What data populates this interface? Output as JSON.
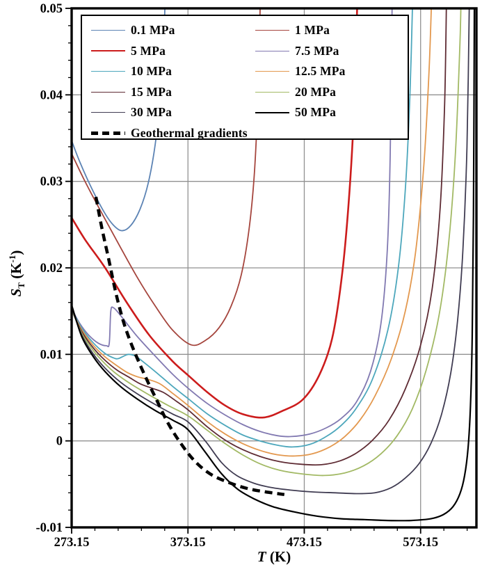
{
  "figure": {
    "xlabel": {
      "symbol": "T",
      "unit": "(K)"
    },
    "ylabel": {
      "symbol": "S",
      "subscript": "T",
      "unit_open": "(K",
      "exponent": "-1",
      "unit_close": ")"
    }
  },
  "legend": {
    "order": [
      "0.1 MPa",
      "1 MPa",
      "5 MPa",
      "7.5 MPa",
      "10 MPa",
      "12.5 MPa",
      "15 MPa",
      "20 MPa",
      "30 MPa",
      "50 MPa",
      "Geothermal gradients"
    ]
  },
  "chart_data": {
    "type": "line",
    "title": "",
    "xlabel": "T (K)",
    "ylabel": "S_T (K^-1)",
    "xlim": [
      273.15,
      621.15
    ],
    "ylim": [
      -0.01,
      0.05
    ],
    "grid": true,
    "legend_position": "upper-left-inside",
    "x_tick_values": [
      273.15,
      373.15,
      473.15,
      573.15
    ],
    "x_tick_labels": [
      "273.15",
      "373.15",
      "473.15",
      "573.15"
    ],
    "x_minor_step": 20,
    "y_tick_values": [
      -0.01,
      0,
      0.01,
      0.02,
      0.03,
      0.04,
      0.05
    ],
    "y_tick_labels": [
      "-0.01",
      "0",
      "0.01",
      "0.02",
      "0.03",
      "0.04",
      "0.05"
    ],
    "y_minor_step": 0.002,
    "grid_color": "#919191",
    "frame_color": "#000000",
    "series": [
      {
        "name": "0.1 MPa",
        "color": "#5c83b4",
        "width": 1.8,
        "dash": false,
        "points": [
          [
            273.15,
            0.0347
          ],
          [
            280,
            0.0323
          ],
          [
            290,
            0.0293
          ],
          [
            300,
            0.0267
          ],
          [
            308,
            0.0251
          ],
          [
            316,
            0.0243
          ],
          [
            324,
            0.0249
          ],
          [
            332,
            0.0268
          ],
          [
            339,
            0.0298
          ],
          [
            345,
            0.0343
          ],
          [
            349,
            0.0395
          ],
          [
            352,
            0.0455
          ],
          [
            353.8,
            0.052
          ]
        ]
      },
      {
        "name": "1 MPa",
        "color": "#a5453d",
        "width": 1.8,
        "dash": false,
        "points": [
          [
            273.15,
            0.0332
          ],
          [
            285,
            0.0299
          ],
          [
            300,
            0.0261
          ],
          [
            315,
            0.0224
          ],
          [
            330,
            0.0188
          ],
          [
            345,
            0.0156
          ],
          [
            360,
            0.0128
          ],
          [
            376,
            0.0111
          ],
          [
            388,
            0.0116
          ],
          [
            400,
            0.0131
          ],
          [
            410,
            0.0155
          ],
          [
            419,
            0.0192
          ],
          [
            426,
            0.0248
          ],
          [
            430.5,
            0.0315
          ],
          [
            433.5,
            0.0405
          ],
          [
            435.5,
            0.052
          ]
        ]
      },
      {
        "name": "5 MPa",
        "color": "#cc1c1c",
        "width": 2.6,
        "dash": false,
        "points": [
          [
            273.15,
            0.0258
          ],
          [
            285,
            0.0232
          ],
          [
            302,
            0.02
          ],
          [
            320,
            0.0161
          ],
          [
            340,
            0.0122
          ],
          [
            360,
            0.0092
          ],
          [
            373.15,
            0.0076
          ],
          [
            390,
            0.0056
          ],
          [
            405,
            0.0041
          ],
          [
            420,
            0.0031
          ],
          [
            438,
            0.0027
          ],
          [
            455,
            0.0035
          ],
          [
            472,
            0.0048
          ],
          [
            486,
            0.0076
          ],
          [
            497,
            0.0118
          ],
          [
            505,
            0.0185
          ],
          [
            511,
            0.027
          ],
          [
            515.5,
            0.037
          ],
          [
            519,
            0.052
          ]
        ]
      },
      {
        "name": "7.5 MPa",
        "color": "#8179b1",
        "width": 1.8,
        "dash": false,
        "points": [
          [
            273.15,
            0.0153
          ],
          [
            280,
            0.0136
          ],
          [
            288,
            0.0122
          ],
          [
            296,
            0.0113
          ],
          [
            303,
            0.011
          ],
          [
            305.5,
            0.0113
          ],
          [
            306.8,
            0.015
          ],
          [
            309,
            0.0154
          ],
          [
            314,
            0.0147
          ],
          [
            321,
            0.0135
          ],
          [
            330,
            0.012
          ],
          [
            345,
            0.0098
          ],
          [
            360,
            0.0077
          ],
          [
            373.15,
            0.0061
          ],
          [
            390,
            0.0043
          ],
          [
            405,
            0.003
          ],
          [
            420,
            0.0019
          ],
          [
            435,
            0.0011
          ],
          [
            450,
            0.0006
          ],
          [
            462,
            0.0005
          ],
          [
            478,
            0.0008
          ],
          [
            492,
            0.0015
          ],
          [
            505,
            0.0026
          ],
          [
            518,
            0.0045
          ],
          [
            530,
            0.008
          ],
          [
            539,
            0.0135
          ],
          [
            544.5,
            0.022
          ],
          [
            547,
            0.033
          ],
          [
            548.8,
            0.052
          ]
        ]
      },
      {
        "name": "10 MPa",
        "color": "#4da7bc",
        "width": 1.8,
        "dash": false,
        "points": [
          [
            273.15,
            0.0152
          ],
          [
            282,
            0.013
          ],
          [
            292,
            0.0113
          ],
          [
            302,
            0.0101
          ],
          [
            309,
            0.0096
          ],
          [
            313,
            0.0095
          ],
          [
            318,
            0.0098
          ],
          [
            322,
            0.01
          ],
          [
            328,
            0.0098
          ],
          [
            336,
            0.009
          ],
          [
            346,
            0.0079
          ],
          [
            360,
            0.0063
          ],
          [
            373.15,
            0.0049
          ],
          [
            390,
            0.0031
          ],
          [
            405,
            0.0018
          ],
          [
            420,
            0.0007
          ],
          [
            435,
            0.0
          ],
          [
            450,
            -0.0005
          ],
          [
            463,
            -0.0007
          ],
          [
            478,
            -0.0004
          ],
          [
            492,
            0.0005
          ],
          [
            505,
            0.0018
          ],
          [
            518,
            0.0038
          ],
          [
            532,
            0.0072
          ],
          [
            545,
            0.0128
          ],
          [
            554,
            0.02
          ],
          [
            560,
            0.029
          ],
          [
            564,
            0.04
          ],
          [
            566.5,
            0.052
          ]
        ]
      },
      {
        "name": "12.5 MPa",
        "color": "#e3984e",
        "width": 1.8,
        "dash": false,
        "points": [
          [
            273.15,
            0.0151
          ],
          [
            282,
            0.0128
          ],
          [
            292,
            0.011
          ],
          [
            302,
            0.0097
          ],
          [
            312,
            0.0087
          ],
          [
            321,
            0.0079
          ],
          [
            330,
            0.0074
          ],
          [
            339,
            0.0071
          ],
          [
            349,
            0.0066
          ],
          [
            360,
            0.0055
          ],
          [
            373.15,
            0.0041
          ],
          [
            390,
            0.0022
          ],
          [
            405,
            0.0008
          ],
          [
            420,
            -0.0003
          ],
          [
            435,
            -0.0011
          ],
          [
            450,
            -0.0016
          ],
          [
            465,
            -0.00175
          ],
          [
            480,
            -0.0015
          ],
          [
            495,
            -0.0007
          ],
          [
            508,
            0.0005
          ],
          [
            521,
            0.0024
          ],
          [
            534,
            0.0052
          ],
          [
            548,
            0.0095
          ],
          [
            560,
            0.015
          ],
          [
            569,
            0.022
          ],
          [
            576,
            0.032
          ],
          [
            580.5,
            0.043
          ],
          [
            582.8,
            0.052
          ]
        ]
      },
      {
        "name": "15 MPa",
        "color": "#5e2b33",
        "width": 1.8,
        "dash": false,
        "points": [
          [
            273.15,
            0.0151
          ],
          [
            282,
            0.0126
          ],
          [
            292,
            0.0107
          ],
          [
            302,
            0.0093
          ],
          [
            312,
            0.0082
          ],
          [
            322,
            0.0074
          ],
          [
            332,
            0.0066
          ],
          [
            342,
            0.0061
          ],
          [
            352,
            0.0056
          ],
          [
            363,
            0.0046
          ],
          [
            373.15,
            0.0036
          ],
          [
            390,
            0.0016
          ],
          [
            405,
            0.0001
          ],
          [
            420,
            -0.001
          ],
          [
            435,
            -0.0018
          ],
          [
            452,
            -0.0024
          ],
          [
            470,
            -0.0027
          ],
          [
            488,
            -0.00275
          ],
          [
            504,
            -0.0023
          ],
          [
            518,
            -0.0014
          ],
          [
            532,
            0.0001
          ],
          [
            546,
            0.0024
          ],
          [
            560,
            0.006
          ],
          [
            573,
            0.011
          ],
          [
            583,
            0.0175
          ],
          [
            590,
            0.027
          ],
          [
            593.8,
            0.039
          ],
          [
            595.5,
            0.052
          ]
        ]
      },
      {
        "name": "20 MPa",
        "color": "#a2b964",
        "width": 1.8,
        "dash": false,
        "points": [
          [
            273.15,
            0.0152
          ],
          [
            282,
            0.0124
          ],
          [
            292,
            0.0104
          ],
          [
            302,
            0.0089
          ],
          [
            312,
            0.0077
          ],
          [
            325,
            0.0065
          ],
          [
            340,
            0.0053
          ],
          [
            356,
            0.0041
          ],
          [
            373.15,
            0.0029
          ],
          [
            390,
            0.0012
          ],
          [
            405,
            -0.0003
          ],
          [
            420,
            -0.0016
          ],
          [
            436,
            -0.0027
          ],
          [
            452,
            -0.0034
          ],
          [
            470,
            -0.0038
          ],
          [
            490,
            -0.004
          ],
          [
            508,
            -0.0037
          ],
          [
            524,
            -0.0029
          ],
          [
            539,
            -0.0015
          ],
          [
            553,
            0.0006
          ],
          [
            566,
            0.0037
          ],
          [
            578,
            0.0082
          ],
          [
            589,
            0.0145
          ],
          [
            597,
            0.0225
          ],
          [
            603,
            0.033
          ],
          [
            607,
            0.046
          ],
          [
            608,
            0.052
          ]
        ]
      },
      {
        "name": "30 MPa",
        "color": "#403c52",
        "width": 1.8,
        "dash": false,
        "points": [
          [
            273.15,
            0.0154
          ],
          [
            282,
            0.0122
          ],
          [
            292,
            0.01
          ],
          [
            302,
            0.0084
          ],
          [
            315,
            0.0068
          ],
          [
            330,
            0.0054
          ],
          [
            345,
            0.0042
          ],
          [
            360,
            0.0031
          ],
          [
            373.15,
            0.0022
          ],
          [
            388,
            0.0
          ],
          [
            402,
            -0.0025
          ],
          [
            415,
            -0.004
          ],
          [
            430,
            -0.0049
          ],
          [
            445,
            -0.0054
          ],
          [
            462,
            -0.0057
          ],
          [
            480,
            -0.0059
          ],
          [
            500,
            -0.006
          ],
          [
            518,
            -0.0061
          ],
          [
            534,
            -0.006
          ],
          [
            548,
            -0.0054
          ],
          [
            560,
            -0.0043
          ],
          [
            572,
            -0.0026
          ],
          [
            582,
            -0.0003
          ],
          [
            591,
            0.003
          ],
          [
            599,
            0.0078
          ],
          [
            605,
            0.014
          ],
          [
            609.5,
            0.022
          ],
          [
            613,
            0.034
          ],
          [
            615.2,
            0.052
          ]
        ]
      },
      {
        "name": "50 MPa",
        "color": "#000000",
        "width": 2.2,
        "dash": false,
        "points": [
          [
            273.15,
            0.0157
          ],
          [
            282,
            0.012
          ],
          [
            292,
            0.0097
          ],
          [
            302,
            0.008
          ],
          [
            315,
            0.0063
          ],
          [
            330,
            0.0048
          ],
          [
            345,
            0.0035
          ],
          [
            360,
            0.0024
          ],
          [
            373.15,
            0.0013
          ],
          [
            388,
            -0.0013
          ],
          [
            402,
            -0.0038
          ],
          [
            416,
            -0.0056
          ],
          [
            430,
            -0.0067
          ],
          [
            446,
            -0.0076
          ],
          [
            464,
            -0.0082
          ],
          [
            484,
            -0.0087
          ],
          [
            505,
            -0.009
          ],
          [
            525,
            -0.0091
          ],
          [
            545,
            -0.0092
          ],
          [
            565,
            -0.0092
          ],
          [
            582,
            -0.009
          ],
          [
            593,
            -0.0085
          ],
          [
            601,
            -0.0076
          ],
          [
            607,
            -0.0061
          ],
          [
            611,
            -0.004
          ],
          [
            614,
            -0.0008
          ],
          [
            616,
            0.004
          ],
          [
            617.5,
            0.012
          ],
          [
            618.6,
            0.026
          ],
          [
            619.4,
            0.052
          ]
        ]
      },
      {
        "name": "Geothermal gradients",
        "color": "#000000",
        "width": 4.5,
        "dash": true,
        "points": [
          [
            294,
            0.0282
          ],
          [
            299,
            0.0247
          ],
          [
            305,
            0.021
          ],
          [
            311,
            0.0172
          ],
          [
            317,
            0.0141
          ],
          [
            323,
            0.0117
          ],
          [
            330,
            0.0094
          ],
          [
            338,
            0.007
          ],
          [
            346,
            0.0048
          ],
          [
            355,
            0.0023
          ],
          [
            365,
            0.0001
          ],
          [
            378,
            -0.0022
          ],
          [
            392,
            -0.0038
          ],
          [
            408,
            -0.0048
          ],
          [
            424,
            -0.0055
          ],
          [
            440,
            -0.0059
          ],
          [
            456,
            -0.0062
          ]
        ]
      }
    ]
  }
}
